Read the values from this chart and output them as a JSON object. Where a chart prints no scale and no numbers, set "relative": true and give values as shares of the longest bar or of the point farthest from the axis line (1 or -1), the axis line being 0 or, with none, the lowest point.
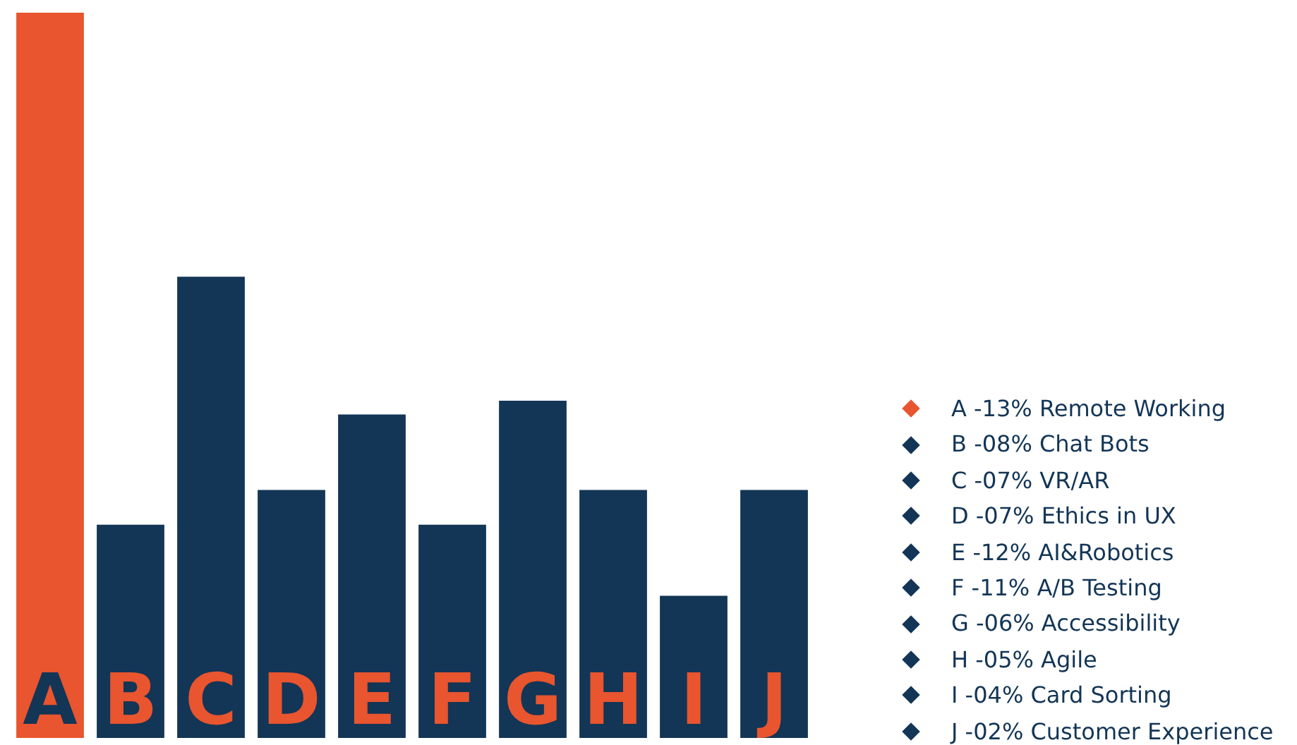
{
  "chart_data": {
    "type": "bar",
    "relative": true,
    "categories": [
      "A",
      "B",
      "C",
      "D",
      "E",
      "F",
      "G",
      "H",
      "I",
      "J"
    ],
    "values": [
      1,
      0.294,
      0.636,
      0.342,
      0.446,
      0.294,
      0.465,
      0.342,
      0.196,
      0.342
    ],
    "colors": [
      "#e8552e",
      "#133556",
      "#133556",
      "#133556",
      "#133556",
      "#133556",
      "#133556",
      "#133556",
      "#133556",
      "#133556"
    ],
    "annotations": [
      "A -13% Remote Working",
      "B -08% Chat Bots",
      "C -07% VR/AR",
      "D -07% Ethics in UX",
      "E -12% AI&Robotics",
      "F -11% A/B Testing",
      "G -06% Accessibility",
      "H -05% Agile",
      "I -04% Card Sorting",
      "J -02% Customer Experience"
    ]
  }
}
